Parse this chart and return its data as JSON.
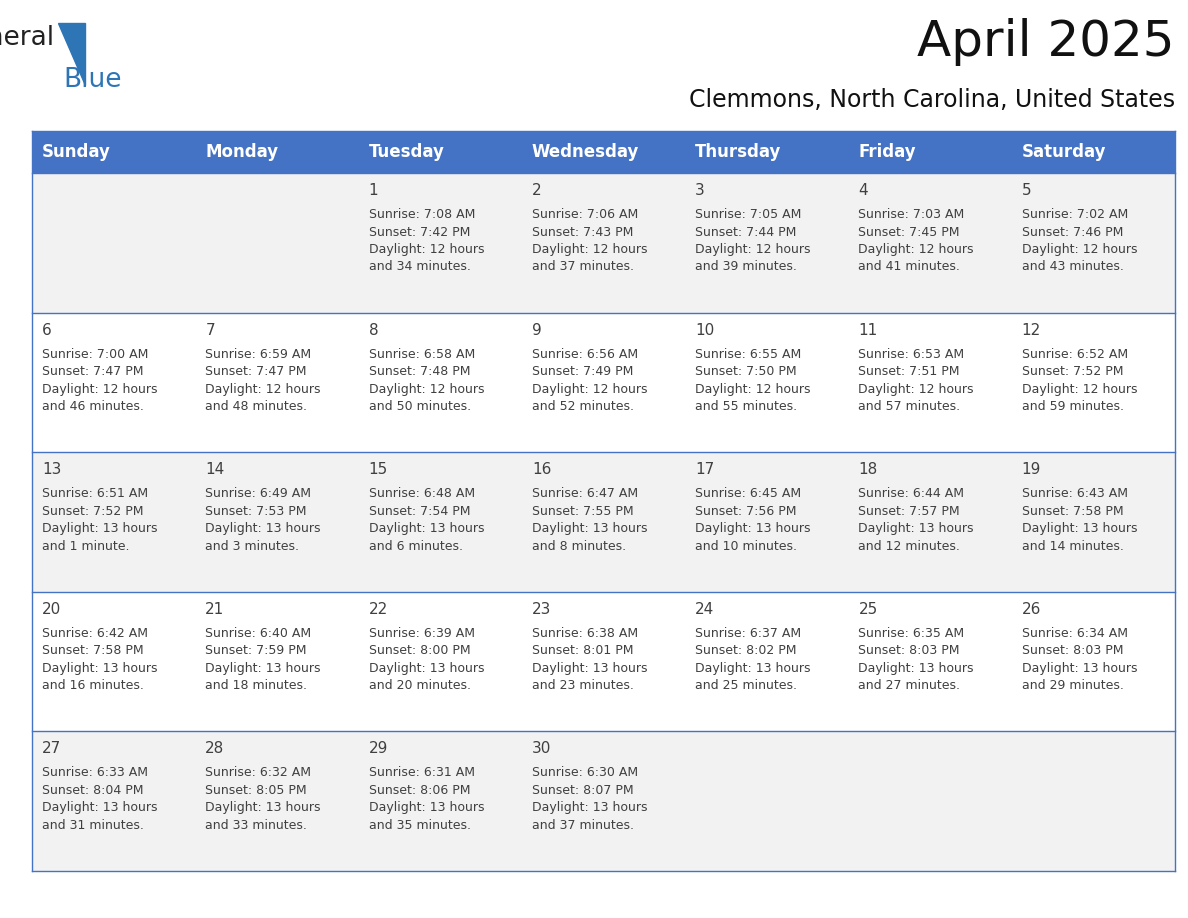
{
  "title": "April 2025",
  "subtitle": "Clemmons, North Carolina, United States",
  "header_bg": "#4472C4",
  "header_text_color": "#FFFFFF",
  "cell_bg_even": "#F2F2F2",
  "cell_bg_odd": "#FFFFFF",
  "row_line_color": "#4472C4",
  "text_color": "#404040",
  "days_of_week": [
    "Sunday",
    "Monday",
    "Tuesday",
    "Wednesday",
    "Thursday",
    "Friday",
    "Saturday"
  ],
  "weeks": [
    [
      {
        "day": "",
        "info": ""
      },
      {
        "day": "",
        "info": ""
      },
      {
        "day": "1",
        "info": "Sunrise: 7:08 AM\nSunset: 7:42 PM\nDaylight: 12 hours\nand 34 minutes."
      },
      {
        "day": "2",
        "info": "Sunrise: 7:06 AM\nSunset: 7:43 PM\nDaylight: 12 hours\nand 37 minutes."
      },
      {
        "day": "3",
        "info": "Sunrise: 7:05 AM\nSunset: 7:44 PM\nDaylight: 12 hours\nand 39 minutes."
      },
      {
        "day": "4",
        "info": "Sunrise: 7:03 AM\nSunset: 7:45 PM\nDaylight: 12 hours\nand 41 minutes."
      },
      {
        "day": "5",
        "info": "Sunrise: 7:02 AM\nSunset: 7:46 PM\nDaylight: 12 hours\nand 43 minutes."
      }
    ],
    [
      {
        "day": "6",
        "info": "Sunrise: 7:00 AM\nSunset: 7:47 PM\nDaylight: 12 hours\nand 46 minutes."
      },
      {
        "day": "7",
        "info": "Sunrise: 6:59 AM\nSunset: 7:47 PM\nDaylight: 12 hours\nand 48 minutes."
      },
      {
        "day": "8",
        "info": "Sunrise: 6:58 AM\nSunset: 7:48 PM\nDaylight: 12 hours\nand 50 minutes."
      },
      {
        "day": "9",
        "info": "Sunrise: 6:56 AM\nSunset: 7:49 PM\nDaylight: 12 hours\nand 52 minutes."
      },
      {
        "day": "10",
        "info": "Sunrise: 6:55 AM\nSunset: 7:50 PM\nDaylight: 12 hours\nand 55 minutes."
      },
      {
        "day": "11",
        "info": "Sunrise: 6:53 AM\nSunset: 7:51 PM\nDaylight: 12 hours\nand 57 minutes."
      },
      {
        "day": "12",
        "info": "Sunrise: 6:52 AM\nSunset: 7:52 PM\nDaylight: 12 hours\nand 59 minutes."
      }
    ],
    [
      {
        "day": "13",
        "info": "Sunrise: 6:51 AM\nSunset: 7:52 PM\nDaylight: 13 hours\nand 1 minute."
      },
      {
        "day": "14",
        "info": "Sunrise: 6:49 AM\nSunset: 7:53 PM\nDaylight: 13 hours\nand 3 minutes."
      },
      {
        "day": "15",
        "info": "Sunrise: 6:48 AM\nSunset: 7:54 PM\nDaylight: 13 hours\nand 6 minutes."
      },
      {
        "day": "16",
        "info": "Sunrise: 6:47 AM\nSunset: 7:55 PM\nDaylight: 13 hours\nand 8 minutes."
      },
      {
        "day": "17",
        "info": "Sunrise: 6:45 AM\nSunset: 7:56 PM\nDaylight: 13 hours\nand 10 minutes."
      },
      {
        "day": "18",
        "info": "Sunrise: 6:44 AM\nSunset: 7:57 PM\nDaylight: 13 hours\nand 12 minutes."
      },
      {
        "day": "19",
        "info": "Sunrise: 6:43 AM\nSunset: 7:58 PM\nDaylight: 13 hours\nand 14 minutes."
      }
    ],
    [
      {
        "day": "20",
        "info": "Sunrise: 6:42 AM\nSunset: 7:58 PM\nDaylight: 13 hours\nand 16 minutes."
      },
      {
        "day": "21",
        "info": "Sunrise: 6:40 AM\nSunset: 7:59 PM\nDaylight: 13 hours\nand 18 minutes."
      },
      {
        "day": "22",
        "info": "Sunrise: 6:39 AM\nSunset: 8:00 PM\nDaylight: 13 hours\nand 20 minutes."
      },
      {
        "day": "23",
        "info": "Sunrise: 6:38 AM\nSunset: 8:01 PM\nDaylight: 13 hours\nand 23 minutes."
      },
      {
        "day": "24",
        "info": "Sunrise: 6:37 AM\nSunset: 8:02 PM\nDaylight: 13 hours\nand 25 minutes."
      },
      {
        "day": "25",
        "info": "Sunrise: 6:35 AM\nSunset: 8:03 PM\nDaylight: 13 hours\nand 27 minutes."
      },
      {
        "day": "26",
        "info": "Sunrise: 6:34 AM\nSunset: 8:03 PM\nDaylight: 13 hours\nand 29 minutes."
      }
    ],
    [
      {
        "day": "27",
        "info": "Sunrise: 6:33 AM\nSunset: 8:04 PM\nDaylight: 13 hours\nand 31 minutes."
      },
      {
        "day": "28",
        "info": "Sunrise: 6:32 AM\nSunset: 8:05 PM\nDaylight: 13 hours\nand 33 minutes."
      },
      {
        "day": "29",
        "info": "Sunrise: 6:31 AM\nSunset: 8:06 PM\nDaylight: 13 hours\nand 35 minutes."
      },
      {
        "day": "30",
        "info": "Sunrise: 6:30 AM\nSunset: 8:07 PM\nDaylight: 13 hours\nand 37 minutes."
      },
      {
        "day": "",
        "info": ""
      },
      {
        "day": "",
        "info": ""
      },
      {
        "day": "",
        "info": ""
      }
    ]
  ],
  "logo_text1": "General",
  "logo_text2": "Blue",
  "logo_color1": "#222222",
  "logo_color2": "#2E75B6",
  "logo_triangle_color": "#2E75B6",
  "title_fontsize": 36,
  "subtitle_fontsize": 17,
  "header_fontsize": 12,
  "day_num_fontsize": 11,
  "cell_text_fontsize": 9
}
